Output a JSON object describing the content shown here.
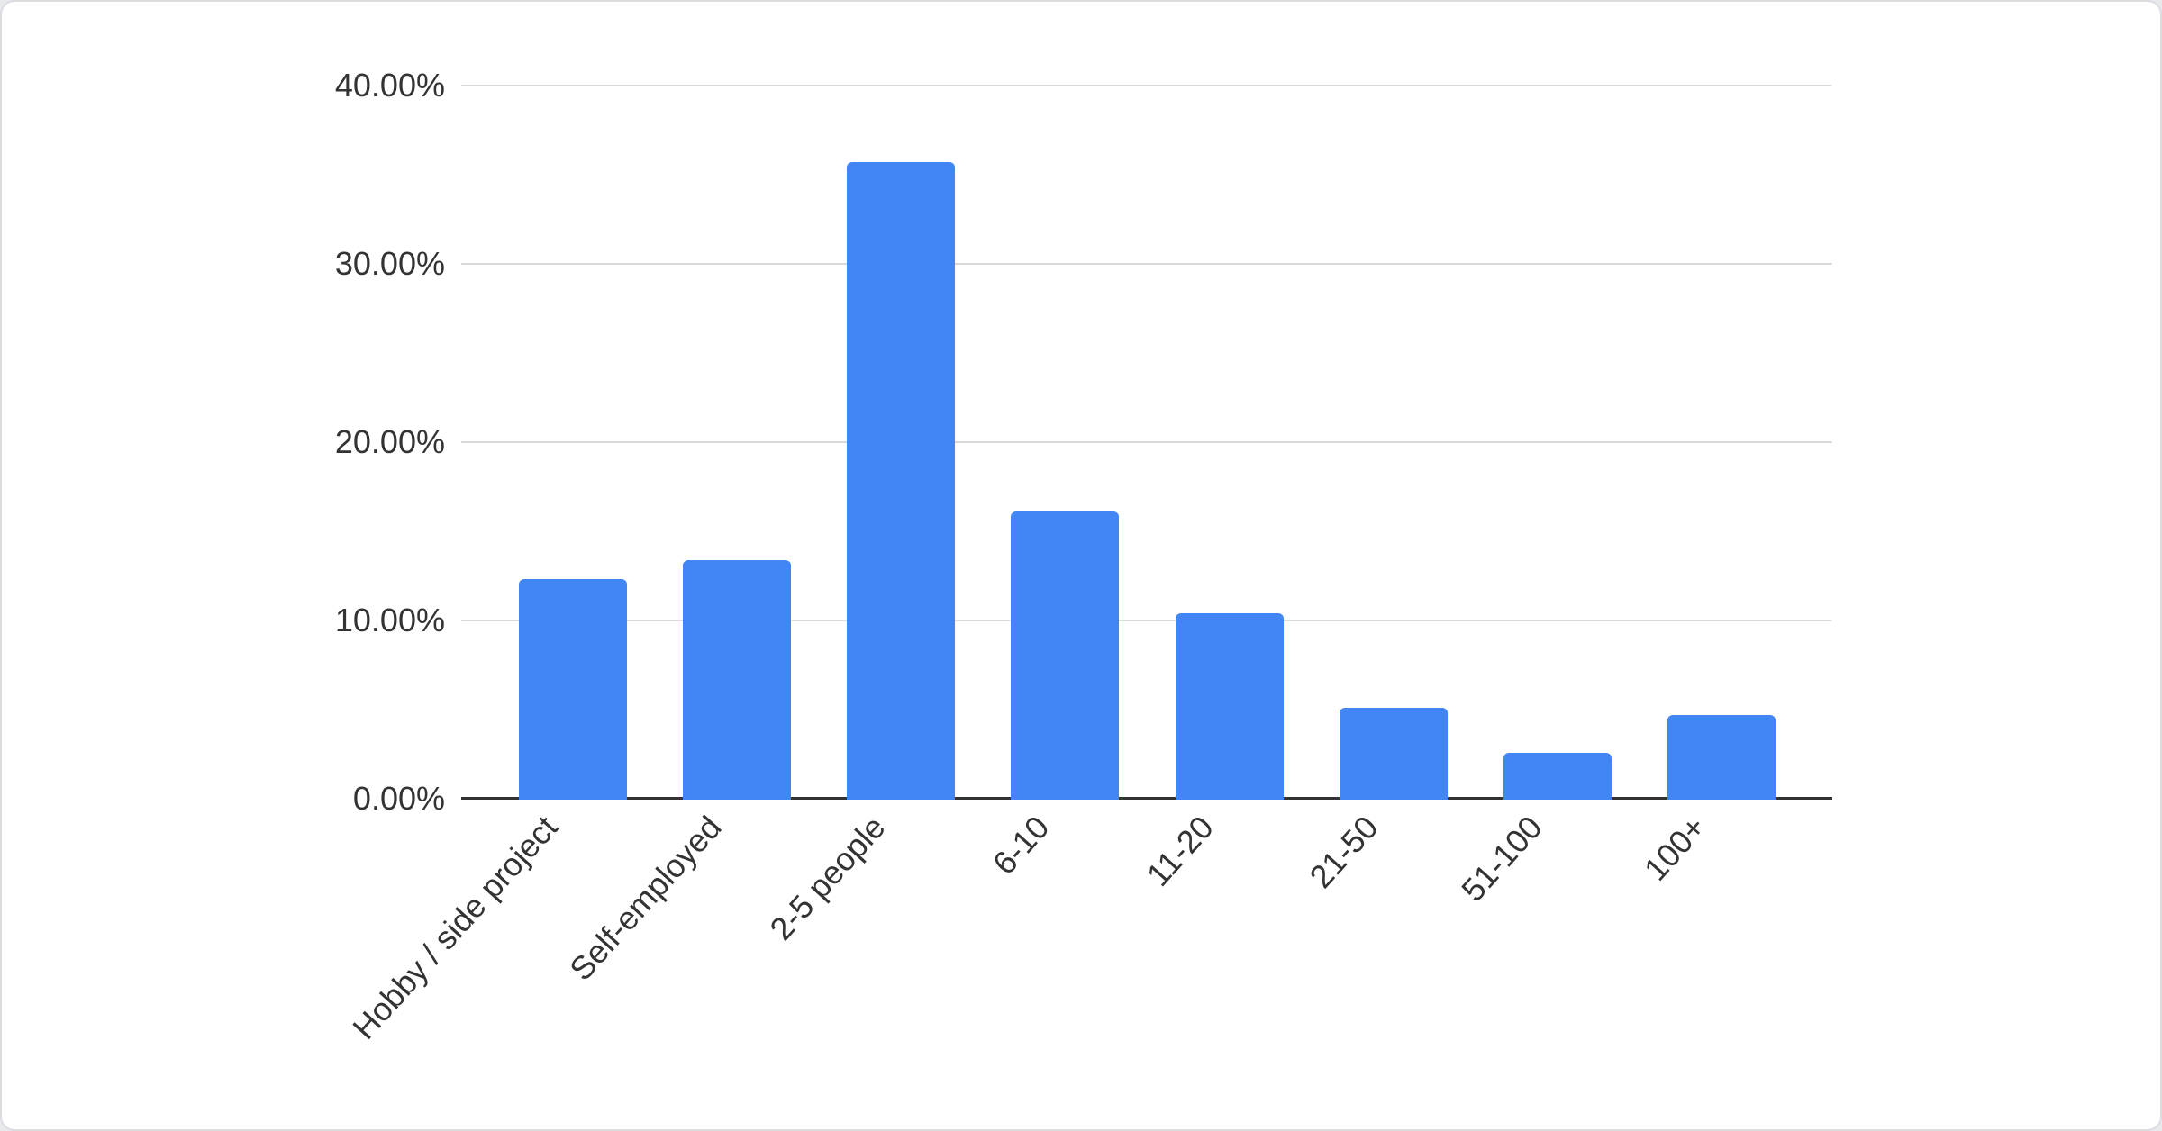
{
  "chart_data": {
    "type": "bar",
    "title": "",
    "xlabel": "",
    "ylabel": "",
    "categories": [
      "Hobby / side project",
      "Self-employed",
      "2-5 people",
      "6-10",
      "11-20",
      "21-50",
      "51-100",
      "100+"
    ],
    "values": [
      12.2,
      13.3,
      35.6,
      16.0,
      10.3,
      5.0,
      2.5,
      4.6
    ],
    "value_unit": "percent",
    "ylim": [
      0,
      40
    ],
    "y_tick_values": [
      0,
      10,
      20,
      30,
      40
    ],
    "y_tick_labels": [
      "0.00%",
      "10.00%",
      "20.00%",
      "30.00%",
      "40.00%"
    ],
    "grid": true,
    "legend": "none",
    "bar_color": "#4285f4",
    "axis_line_color": "#333333",
    "gridline_color": "#d9d9d9",
    "tick_label_color": "#333333",
    "card_border_color": "#dadce0",
    "card_background": "#ffffff",
    "page_background": "#e8eaed"
  }
}
